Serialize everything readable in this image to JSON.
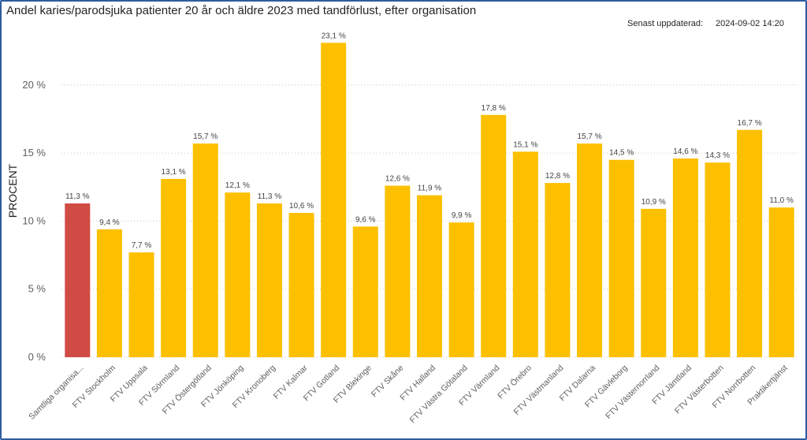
{
  "title": "Andel karies/parodsjuka patienter 20 år och äldre 2023 med tandförlust, efter organisation",
  "updated": {
    "label": "Senast uppdaterad:",
    "value": "2024-09-02 14:20"
  },
  "colors": {
    "highlight": "#d14b45",
    "bar": "#fdc000",
    "grid": "#c8c6c4"
  },
  "chart_data": {
    "type": "bar",
    "title": "Andel karies/parodsjuka patienter 20 år och äldre 2023 med tandförlust, efter organisation",
    "ylabel": "PROCENT",
    "ylim": [
      0,
      25
    ],
    "yticks": [
      0,
      5,
      10,
      15,
      20
    ],
    "ytick_labels": [
      "0 %",
      "5 %",
      "10 %",
      "15 %",
      "20 %"
    ],
    "grid": true,
    "categories": [
      "Samtliga organisa...",
      "FTV Stockholm",
      "FTV Uppsala",
      "FTV Sörmland",
      "FTV Östergötland",
      "FTV Jönköping",
      "FTV Kronoberg",
      "FTV Kalmar",
      "FTV Gotland",
      "FTV Blekinge",
      "FTV Skåne",
      "FTV Halland",
      "FTV Västra Götaland",
      "FTV Värmland",
      "FTV Örebro",
      "FTV Västmanland",
      "FTV Dalarna",
      "FTV Gävleborg",
      "FTV Västernorrland",
      "FTV Jämtland",
      "FTV Västerbotten",
      "FTV Norrbotten",
      "Praktikertjänst"
    ],
    "values": [
      11.3,
      9.4,
      7.7,
      13.1,
      15.7,
      12.1,
      11.3,
      10.6,
      23.1,
      9.6,
      12.6,
      11.9,
      9.9,
      17.8,
      15.1,
      12.8,
      15.7,
      14.5,
      10.9,
      14.6,
      14.3,
      16.7,
      11.0
    ],
    "value_labels": [
      "11,3 %",
      "9,4 %",
      "7,7 %",
      "13,1 %",
      "15,7 %",
      "12,1 %",
      "11,3 %",
      "10,6 %",
      "23,1 %",
      "9,6 %",
      "12,6 %",
      "11,9 %",
      "9,9 %",
      "17,8 %",
      "15,1 %",
      "12,8 %",
      "15,7 %",
      "14,5 %",
      "10,9 %",
      "14,6 %",
      "14,3 %",
      "16,7 %",
      "11,0 %"
    ],
    "highlight_index": 0
  }
}
